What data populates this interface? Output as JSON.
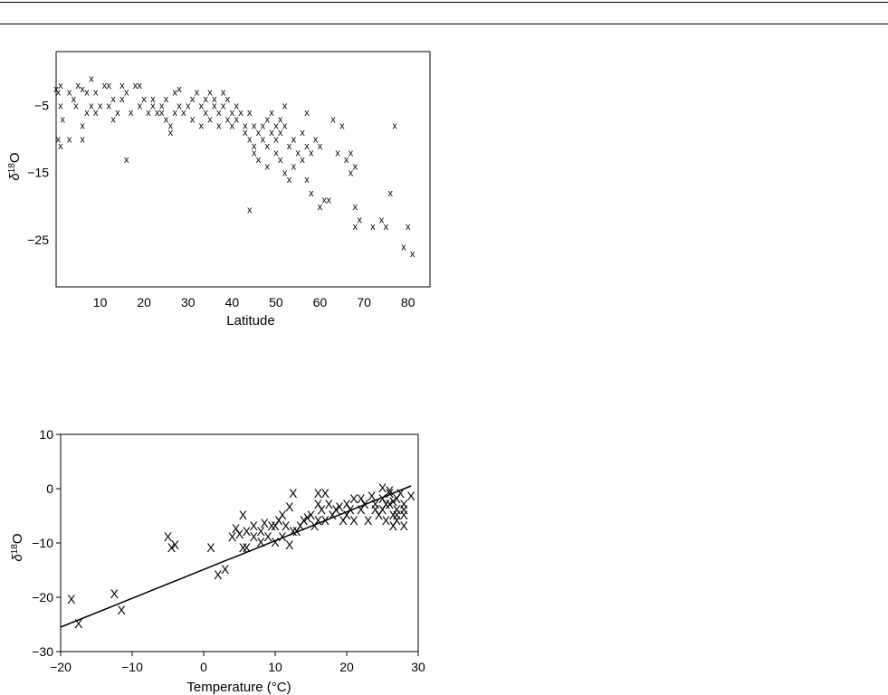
{
  "charts": [
    {
      "type": "scatter",
      "xlabel": "Latitude",
      "ylabel_base": "δ",
      "ylabel_sup": "18",
      "ylabel_tail": "O",
      "xlim": [
        0,
        85
      ],
      "ylim": [
        -32,
        3
      ],
      "xticks": [
        10,
        20,
        30,
        40,
        50,
        60,
        70,
        80
      ],
      "yticks": [
        -5,
        -15,
        -25
      ],
      "marker": "x",
      "grid": false,
      "points": [
        [
          0,
          -2.5
        ],
        [
          0.5,
          -3
        ],
        [
          1,
          -2
        ],
        [
          1,
          -5
        ],
        [
          1.5,
          -7
        ],
        [
          0.5,
          -10
        ],
        [
          1,
          -11
        ],
        [
          3,
          -10
        ],
        [
          3,
          -3
        ],
        [
          4,
          -4
        ],
        [
          4.5,
          -5
        ],
        [
          5,
          -2
        ],
        [
          6,
          -2.5
        ],
        [
          6,
          -8
        ],
        [
          6,
          -10
        ],
        [
          7,
          -3
        ],
        [
          7,
          -6
        ],
        [
          8,
          -1
        ],
        [
          8,
          -5
        ],
        [
          9,
          -3
        ],
        [
          9,
          -6
        ],
        [
          10,
          -5
        ],
        [
          11,
          -2
        ],
        [
          12,
          -2
        ],
        [
          12,
          -5
        ],
        [
          13,
          -4
        ],
        [
          13,
          -7
        ],
        [
          14,
          -6
        ],
        [
          15,
          -4
        ],
        [
          15,
          -2
        ],
        [
          16,
          -13
        ],
        [
          16,
          -3
        ],
        [
          17,
          -6
        ],
        [
          18,
          -2
        ],
        [
          19,
          -2
        ],
        [
          19,
          -5
        ],
        [
          20,
          -4
        ],
        [
          21,
          -6
        ],
        [
          22,
          -4
        ],
        [
          22,
          -5
        ],
        [
          23,
          -6
        ],
        [
          24,
          -5
        ],
        [
          24,
          -6
        ],
        [
          25,
          -4
        ],
        [
          25,
          -7
        ],
        [
          26,
          -8
        ],
        [
          26,
          -9
        ],
        [
          27,
          -3
        ],
        [
          27,
          -6
        ],
        [
          28,
          -5
        ],
        [
          28,
          -2.5
        ],
        [
          29,
          -6
        ],
        [
          30,
          -5
        ],
        [
          31,
          -4
        ],
        [
          31,
          -7
        ],
        [
          32,
          -3
        ],
        [
          33,
          -5
        ],
        [
          33,
          -8
        ],
        [
          34,
          -4
        ],
        [
          34,
          -6
        ],
        [
          35,
          -3
        ],
        [
          35,
          -7
        ],
        [
          36,
          -5
        ],
        [
          36,
          -4
        ],
        [
          37,
          -6
        ],
        [
          37,
          -8
        ],
        [
          38,
          -3
        ],
        [
          38,
          -5
        ],
        [
          39,
          -7
        ],
        [
          39,
          -4
        ],
        [
          40,
          -6
        ],
        [
          40,
          -8
        ],
        [
          41,
          -5
        ],
        [
          41,
          -7
        ],
        [
          42,
          -6
        ],
        [
          43,
          -8
        ],
        [
          43,
          -9
        ],
        [
          44,
          -10
        ],
        [
          44,
          -6
        ],
        [
          45,
          -8
        ],
        [
          45,
          -11
        ],
        [
          45,
          -12
        ],
        [
          46,
          -9
        ],
        [
          46,
          -13
        ],
        [
          47,
          -8
        ],
        [
          47,
          -10
        ],
        [
          48,
          -7
        ],
        [
          48,
          -11
        ],
        [
          48,
          -14
        ],
        [
          49,
          -9
        ],
        [
          49,
          -6
        ],
        [
          50,
          -8
        ],
        [
          50,
          -10
        ],
        [
          50,
          -12
        ],
        [
          51,
          -7
        ],
        [
          51,
          -9
        ],
        [
          51,
          -13
        ],
        [
          52,
          -5
        ],
        [
          52,
          -8
        ],
        [
          52,
          -15
        ],
        [
          53,
          -11
        ],
        [
          53,
          -16
        ],
        [
          54,
          -10
        ],
        [
          54,
          -14
        ],
        [
          55,
          -12
        ],
        [
          56,
          -9
        ],
        [
          56,
          -13
        ],
        [
          57,
          -6
        ],
        [
          57,
          -11
        ],
        [
          57,
          -16
        ],
        [
          58,
          -12
        ],
        [
          58,
          -18
        ],
        [
          59,
          -10
        ],
        [
          60,
          -11
        ],
        [
          60,
          -20
        ],
        [
          61,
          -19
        ],
        [
          62,
          -19
        ],
        [
          63,
          -7
        ],
        [
          64,
          -12
        ],
        [
          65,
          -8
        ],
        [
          66,
          -13
        ],
        [
          67,
          -12
        ],
        [
          67,
          -15
        ],
        [
          68,
          -14
        ],
        [
          68,
          -20
        ],
        [
          68,
          -23
        ],
        [
          69,
          -22
        ],
        [
          72,
          -23
        ],
        [
          74,
          -22
        ],
        [
          75,
          -23
        ],
        [
          76,
          -18
        ],
        [
          77,
          -8
        ],
        [
          79,
          -26
        ],
        [
          80,
          -23
        ],
        [
          81,
          -27
        ],
        [
          44,
          -20.5
        ]
      ]
    },
    {
      "type": "scatter",
      "xlabel": "Temperature (°C)",
      "ylabel_base": "δ",
      "ylabel_sup": "18",
      "ylabel_tail": "O",
      "xlim": [
        -20,
        30
      ],
      "ylim": [
        -30,
        10
      ],
      "xticks": [
        -20,
        -10,
        0,
        10,
        20,
        30
      ],
      "yticks": [
        10,
        0,
        -10,
        -20,
        -30
      ],
      "marker": "X",
      "grid": false,
      "fit_line": {
        "x": [
          -20,
          29
        ],
        "y": [
          -25.5,
          0.5
        ]
      },
      "points": [
        [
          -18.5,
          -20.5
        ],
        [
          -17.5,
          -25
        ],
        [
          -12.5,
          -19.5
        ],
        [
          -11.5,
          -22.5
        ],
        [
          -5,
          -9
        ],
        [
          -4.5,
          -11
        ],
        [
          -4,
          -10.5
        ],
        [
          1,
          -11
        ],
        [
          2,
          -16
        ],
        [
          3,
          -15
        ],
        [
          4,
          -9
        ],
        [
          4.5,
          -7.5
        ],
        [
          5,
          -8.5
        ],
        [
          5.5,
          -11
        ],
        [
          5.5,
          -5
        ],
        [
          6,
          -11
        ],
        [
          6,
          -8
        ],
        [
          7,
          -7
        ],
        [
          7,
          -9
        ],
        [
          8,
          -8
        ],
        [
          8,
          -10
        ],
        [
          8.5,
          -6.5
        ],
        [
          9,
          -9
        ],
        [
          9.5,
          -7
        ],
        [
          10,
          -7
        ],
        [
          10,
          -10
        ],
        [
          10.5,
          -6
        ],
        [
          11,
          -5
        ],
        [
          11,
          -9
        ],
        [
          11.5,
          -7
        ],
        [
          12,
          -3.5
        ],
        [
          12,
          -10.5
        ],
        [
          12.5,
          -8
        ],
        [
          12.5,
          -1
        ],
        [
          13,
          -8
        ],
        [
          13.5,
          -7
        ],
        [
          14,
          -6
        ],
        [
          14.5,
          -5.5
        ],
        [
          15,
          -5
        ],
        [
          15.5,
          -7
        ],
        [
          16,
          -6
        ],
        [
          16,
          -3
        ],
        [
          16,
          -1
        ],
        [
          16.5,
          -4
        ],
        [
          17,
          -6
        ],
        [
          17,
          -1
        ],
        [
          17.5,
          -3
        ],
        [
          18,
          -5
        ],
        [
          18.5,
          -4
        ],
        [
          19,
          -3.5
        ],
        [
          19.5,
          -6
        ],
        [
          20,
          -5
        ],
        [
          20,
          -3
        ],
        [
          20.5,
          -4
        ],
        [
          21,
          -2
        ],
        [
          21,
          -6
        ],
        [
          22,
          -4
        ],
        [
          22,
          -2
        ],
        [
          23,
          -6
        ],
        [
          23.5,
          -1.5
        ],
        [
          24,
          -3
        ],
        [
          24.5,
          -5
        ],
        [
          25,
          -2
        ],
        [
          25,
          -4
        ],
        [
          25,
          0
        ],
        [
          25.5,
          -6
        ],
        [
          26,
          -1
        ],
        [
          26,
          -3
        ],
        [
          26.5,
          -5
        ],
        [
          26.5,
          -7
        ],
        [
          27,
          -2
        ],
        [
          27,
          -4
        ],
        [
          27,
          -6
        ],
        [
          27.5,
          -1
        ],
        [
          28,
          -3
        ],
        [
          28,
          -5
        ],
        [
          28,
          -7
        ],
        [
          29,
          -1.5
        ],
        [
          25.5,
          -3
        ],
        [
          26,
          -0.5
        ],
        [
          27,
          -5
        ],
        [
          28,
          -4
        ],
        [
          26.5,
          -2.5
        ],
        [
          24,
          -4
        ],
        [
          22.5,
          -3
        ]
      ]
    }
  ]
}
